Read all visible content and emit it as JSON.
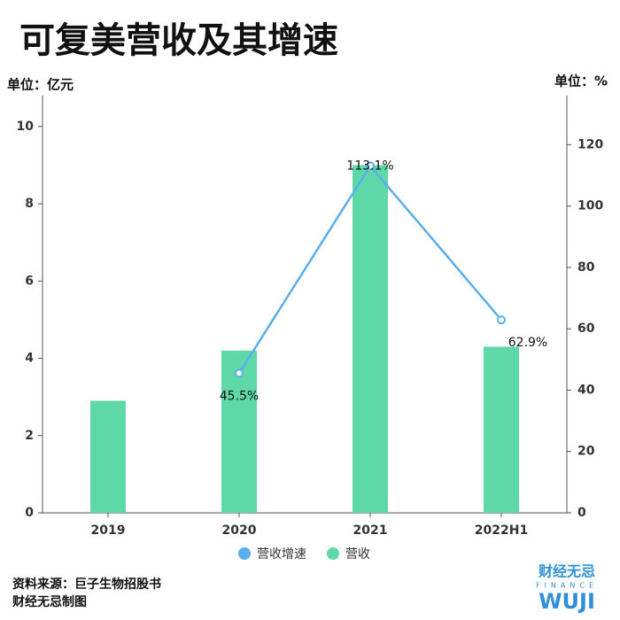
{
  "chart_data": {
    "type": "bar",
    "title": "可复美营收及其增速",
    "y_label": "单位：亿元",
    "y2_label": "单位：%",
    "categories": [
      "2019",
      "2020",
      "2021",
      "2022H1"
    ],
    "series": [
      {
        "name": "营收增速",
        "type": "line",
        "axis": "y2",
        "color": "#5aaeeb",
        "values": [
          null,
          45.5,
          113.1,
          62.9
        ],
        "value_labels": [
          null,
          "45.5%",
          "113.1%",
          "62.9%"
        ]
      },
      {
        "name": "营收",
        "type": "bar",
        "color": "#5fd8a8",
        "values": [
          2.9,
          4.2,
          9.0,
          4.3
        ]
      }
    ],
    "ylim": [
      0,
      10.8
    ],
    "yticks": [
      0,
      2,
      4,
      6,
      8,
      10
    ],
    "y2lim": [
      0,
      136
    ],
    "y2ticks": [
      0,
      20,
      40,
      60,
      80,
      100,
      120
    ],
    "grid": false,
    "source": [
      "资料来源：巨子生物招股书",
      "财经无忌制图"
    ],
    "logo": [
      "财经无忌",
      "FINANCE",
      "WUJI"
    ]
  }
}
